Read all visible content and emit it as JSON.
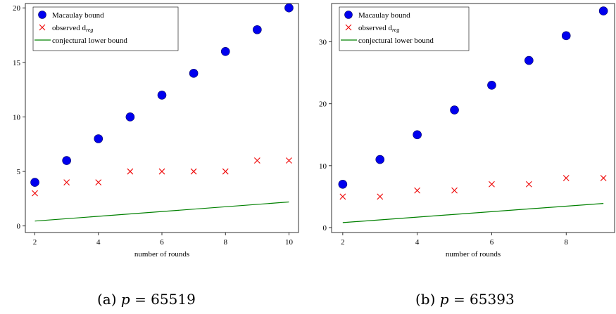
{
  "captions": [
    {
      "prefix": "(a) ",
      "var": "p",
      "value": "= 65519"
    },
    {
      "prefix": "(b) ",
      "var": "p",
      "value": "= 65393"
    }
  ],
  "chart_data": [
    {
      "type": "scatter",
      "xlabel": "number of rounds",
      "ylabel": "",
      "xlim": [
        1.7,
        10.3
      ],
      "ylim": [
        -0.6,
        20.4
      ],
      "xticks": [
        2,
        4,
        6,
        8,
        10
      ],
      "yticks": [
        0,
        5,
        10,
        15,
        20
      ],
      "legend_position": "top-left",
      "grid": false,
      "series": [
        {
          "name": "Macaulay bound",
          "kind": "circle",
          "color": "#0000ee",
          "x": [
            2,
            3,
            4,
            5,
            6,
            7,
            8,
            9,
            10
          ],
          "y": [
            4,
            6,
            8,
            10,
            12,
            14,
            16,
            18,
            20
          ]
        },
        {
          "name": "observed d",
          "name_sub": "reg",
          "kind": "cross",
          "color": "#ee0000",
          "x": [
            2,
            3,
            4,
            5,
            6,
            7,
            8,
            9,
            10
          ],
          "y": [
            3,
            4,
            4,
            5,
            5,
            5,
            5,
            6,
            6
          ]
        },
        {
          "name": "conjectural lower bound",
          "kind": "line",
          "color": "#008000",
          "x": [
            2,
            10
          ],
          "y": [
            0.45,
            2.2
          ]
        }
      ]
    },
    {
      "type": "scatter",
      "xlabel": "number of rounds",
      "ylabel": "",
      "xlim": [
        1.7,
        9.3
      ],
      "ylim": [
        -0.8,
        36.2
      ],
      "xticks": [
        2,
        4,
        6,
        8
      ],
      "yticks": [
        0,
        10,
        20,
        30
      ],
      "legend_position": "top-left",
      "grid": false,
      "series": [
        {
          "name": "Macaulay bound",
          "kind": "circle",
          "color": "#0000ee",
          "x": [
            2,
            3,
            4,
            5,
            6,
            7,
            8,
            9
          ],
          "y": [
            7,
            11,
            15,
            19,
            23,
            27,
            31,
            35
          ]
        },
        {
          "name": "observed d",
          "name_sub": "reg",
          "kind": "cross",
          "color": "#ee0000",
          "x": [
            2,
            3,
            4,
            5,
            6,
            7,
            8,
            9
          ],
          "y": [
            5,
            5,
            6,
            6,
            7,
            7,
            8,
            8
          ]
        },
        {
          "name": "conjectural lower bound",
          "kind": "line",
          "color": "#008000",
          "x": [
            2,
            9
          ],
          "y": [
            0.8,
            3.9
          ]
        }
      ]
    }
  ]
}
